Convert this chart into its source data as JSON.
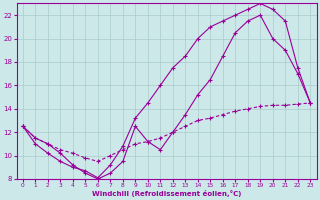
{
  "background_color": "#cce8e8",
  "grid_color": "#aacccc",
  "line_color": "#990099",
  "xlim": [
    -0.5,
    23.5
  ],
  "ylim": [
    8,
    23
  ],
  "xticks": [
    0,
    1,
    2,
    3,
    4,
    5,
    6,
    7,
    8,
    9,
    10,
    11,
    12,
    13,
    14,
    15,
    16,
    17,
    18,
    19,
    20,
    21,
    22,
    23
  ],
  "yticks": [
    8,
    10,
    12,
    14,
    16,
    18,
    20,
    22
  ],
  "xlabel": "Windchill (Refroidissement éolien,°C)",
  "line1_x": [
    0,
    1,
    2,
    3,
    4,
    5,
    6,
    7,
    8,
    9,
    10,
    11,
    12,
    13,
    14,
    15,
    16,
    17,
    18,
    19,
    20,
    21,
    22,
    23
  ],
  "line1_y": [
    12.5,
    11.0,
    10.2,
    9.5,
    9.0,
    8.7,
    8.1,
    9.2,
    10.8,
    13.2,
    14.5,
    16.0,
    17.5,
    18.5,
    20.0,
    21.0,
    21.5,
    22.0,
    22.5,
    23.0,
    22.5,
    21.5,
    17.5,
    14.5
  ],
  "line2_x": [
    0,
    1,
    2,
    3,
    4,
    5,
    6,
    7,
    8,
    9,
    10,
    11,
    12,
    13,
    14,
    15,
    16,
    17,
    18,
    19,
    20,
    21,
    22,
    23
  ],
  "line2_y": [
    12.5,
    11.5,
    11.0,
    10.2,
    9.2,
    8.5,
    8.0,
    8.5,
    9.5,
    12.5,
    11.2,
    10.5,
    12.0,
    13.5,
    15.2,
    16.5,
    18.5,
    20.5,
    21.5,
    22.0,
    20.0,
    19.0,
    17.0,
    14.5
  ],
  "line3_x": [
    0,
    1,
    2,
    3,
    4,
    5,
    6,
    7,
    8,
    9,
    10,
    11,
    12,
    13,
    14,
    15,
    16,
    17,
    18,
    19,
    20,
    21,
    22,
    23
  ],
  "line3_y": [
    12.5,
    11.5,
    11.0,
    10.5,
    10.2,
    9.8,
    9.5,
    10.0,
    10.5,
    11.0,
    11.2,
    11.5,
    12.0,
    12.5,
    13.0,
    13.2,
    13.5,
    13.8,
    14.0,
    14.2,
    14.3,
    14.3,
    14.4,
    14.5
  ]
}
